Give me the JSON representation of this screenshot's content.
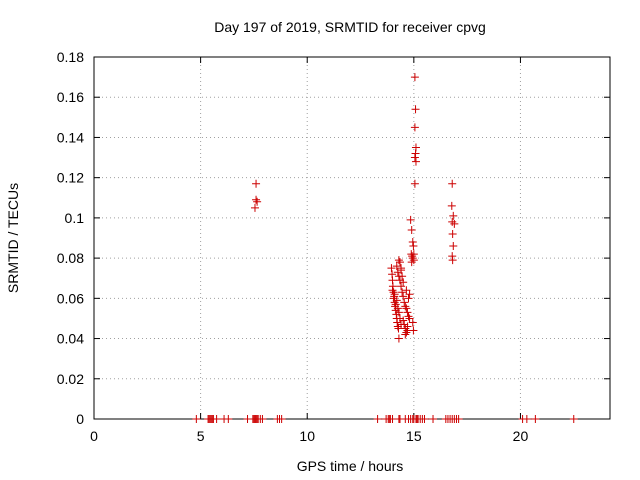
{
  "chart_data": {
    "type": "scatter",
    "title": "Day 197 of 2019, SRMTID for receiver cpvg",
    "xlabel": "GPS time / hours",
    "ylabel": "SRMTID / TECUs",
    "xlim": [
      0,
      24.2
    ],
    "ylim": [
      0,
      0.18
    ],
    "x_ticks": [
      0,
      5,
      10,
      15,
      20
    ],
    "x_tick_labels": [
      "0",
      "5",
      "10",
      "15",
      "20"
    ],
    "y_ticks": [
      0,
      0.02,
      0.04,
      0.06,
      0.08,
      0.1,
      0.12,
      0.14,
      0.16,
      0.18
    ],
    "y_tick_labels": [
      "0",
      "0.02",
      "0.04",
      "0.06",
      "0.08",
      "0.1",
      "0.12",
      "0.14",
      "0.16",
      "0.18"
    ],
    "grid": true,
    "marker": "plus",
    "color": "#cc0000",
    "series": [
      {
        "name": "SRMTID",
        "points": [
          [
            4.8,
            0
          ],
          [
            5.35,
            0
          ],
          [
            5.4,
            0
          ],
          [
            5.45,
            0
          ],
          [
            5.5,
            0
          ],
          [
            5.55,
            0
          ],
          [
            5.6,
            0
          ],
          [
            5.75,
            0
          ],
          [
            6.1,
            0
          ],
          [
            6.3,
            0
          ],
          [
            7.2,
            0
          ],
          [
            7.45,
            0
          ],
          [
            7.5,
            0
          ],
          [
            7.55,
            0
          ],
          [
            7.6,
            0
          ],
          [
            7.65,
            0
          ],
          [
            7.7,
            0
          ],
          [
            7.8,
            0
          ],
          [
            7.9,
            0
          ],
          [
            8.6,
            0
          ],
          [
            8.7,
            0
          ],
          [
            8.8,
            0
          ],
          [
            13.3,
            0
          ],
          [
            13.7,
            0
          ],
          [
            13.8,
            0
          ],
          [
            13.85,
            0
          ],
          [
            13.9,
            0
          ],
          [
            14.0,
            0
          ],
          [
            14.3,
            0
          ],
          [
            14.35,
            0
          ],
          [
            14.6,
            0
          ],
          [
            14.75,
            0
          ],
          [
            14.85,
            0
          ],
          [
            14.95,
            0
          ],
          [
            15.0,
            0
          ],
          [
            15.1,
            0
          ],
          [
            15.15,
            0
          ],
          [
            15.2,
            0
          ],
          [
            15.3,
            0
          ],
          [
            15.4,
            0
          ],
          [
            15.5,
            0
          ],
          [
            15.9,
            0
          ],
          [
            16.5,
            0
          ],
          [
            16.6,
            0
          ],
          [
            16.7,
            0
          ],
          [
            16.8,
            0
          ],
          [
            16.9,
            0
          ],
          [
            17.0,
            0
          ],
          [
            17.1,
            0
          ],
          [
            20.1,
            0
          ],
          [
            20.3,
            0
          ],
          [
            20.7,
            0
          ],
          [
            22.5,
            0
          ],
          [
            7.6,
            0.117
          ],
          [
            7.6,
            0.109
          ],
          [
            7.65,
            0.108
          ],
          [
            7.55,
            0.105
          ],
          [
            13.95,
            0.075
          ],
          [
            13.98,
            0.072
          ],
          [
            14.0,
            0.069
          ],
          [
            14.02,
            0.066
          ],
          [
            14.05,
            0.063
          ],
          [
            14.08,
            0.061
          ],
          [
            14.1,
            0.058
          ],
          [
            14.12,
            0.056
          ],
          [
            14.15,
            0.054
          ],
          [
            14.18,
            0.052
          ],
          [
            14.2,
            0.05
          ],
          [
            14.22,
            0.048
          ],
          [
            14.25,
            0.046
          ],
          [
            14.28,
            0.045
          ],
          [
            14.3,
            0.04
          ],
          [
            14.0,
            0.064
          ],
          [
            14.05,
            0.06
          ],
          [
            14.1,
            0.062
          ],
          [
            14.15,
            0.057
          ],
          [
            14.2,
            0.059
          ],
          [
            14.25,
            0.055
          ],
          [
            14.3,
            0.053
          ],
          [
            14.35,
            0.05
          ],
          [
            14.4,
            0.047
          ],
          [
            14.2,
            0.076
          ],
          [
            14.25,
            0.073
          ],
          [
            14.3,
            0.071
          ],
          [
            14.35,
            0.069
          ],
          [
            14.4,
            0.074
          ],
          [
            14.45,
            0.071
          ],
          [
            14.5,
            0.068
          ],
          [
            14.3,
            0.079
          ],
          [
            14.35,
            0.078
          ],
          [
            14.4,
            0.075
          ],
          [
            14.4,
            0.066
          ],
          [
            14.45,
            0.063
          ],
          [
            14.5,
            0.061
          ],
          [
            14.55,
            0.058
          ],
          [
            14.6,
            0.056
          ],
          [
            14.65,
            0.055
          ],
          [
            14.7,
            0.053
          ],
          [
            14.75,
            0.051
          ],
          [
            14.8,
            0.05
          ],
          [
            14.5,
            0.049
          ],
          [
            14.55,
            0.047
          ],
          [
            14.6,
            0.045
          ],
          [
            14.65,
            0.043
          ],
          [
            14.7,
            0.044
          ],
          [
            14.6,
            0.042
          ],
          [
            14.7,
            0.046
          ],
          [
            14.75,
            0.06
          ],
          [
            14.8,
            0.062
          ],
          [
            14.65,
            0.064
          ],
          [
            14.85,
            0.099
          ],
          [
            14.9,
            0.094
          ],
          [
            14.95,
            0.088
          ],
          [
            14.98,
            0.086
          ],
          [
            14.88,
            0.082
          ],
          [
            14.92,
            0.081
          ],
          [
            14.95,
            0.08
          ],
          [
            15.0,
            0.079
          ],
          [
            14.9,
            0.078
          ],
          [
            15.0,
            0.082
          ],
          [
            14.95,
            0.048
          ],
          [
            14.98,
            0.044
          ],
          [
            15.05,
            0.17
          ],
          [
            15.08,
            0.154
          ],
          [
            15.05,
            0.145
          ],
          [
            15.1,
            0.135
          ],
          [
            15.08,
            0.132
          ],
          [
            15.05,
            0.13
          ],
          [
            15.1,
            0.128
          ],
          [
            15.05,
            0.117
          ],
          [
            16.8,
            0.117
          ],
          [
            16.78,
            0.106
          ],
          [
            16.85,
            0.101
          ],
          [
            16.8,
            0.098
          ],
          [
            16.9,
            0.097
          ],
          [
            16.82,
            0.092
          ],
          [
            16.85,
            0.086
          ],
          [
            16.8,
            0.081
          ],
          [
            16.82,
            0.079
          ]
        ]
      }
    ]
  }
}
